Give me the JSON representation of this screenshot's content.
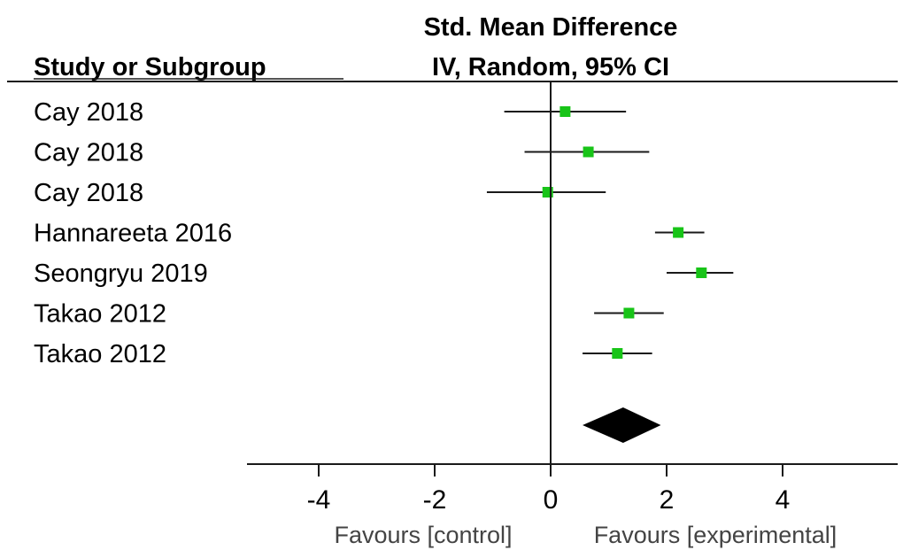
{
  "header": {
    "effect_title": "Std. Mean Difference",
    "column_label": "Study or Subgroup",
    "method": "IV, Random, 95% CI"
  },
  "footer": {
    "favours_left": "Favours [control]",
    "favours_right": "Favours [experimental]"
  },
  "colors": {
    "point": "#18c418",
    "line": "#1a1a1a",
    "diamond": "#000000"
  },
  "chart_data": {
    "type": "forest",
    "title": "Std. Mean Difference",
    "subtitle": "IV, Random, 95% CI",
    "xlim": [
      -5,
      6
    ],
    "x_ticks": [
      -4,
      -2,
      0,
      2,
      4
    ],
    "x_tick_labels": [
      "-4",
      "-2",
      "0",
      "2",
      "4"
    ],
    "studies": [
      {
        "label": "Cay 2018",
        "estimate": 0.25,
        "lower": -0.8,
        "upper": 1.3
      },
      {
        "label": "Cay 2018",
        "estimate": 0.65,
        "lower": -0.45,
        "upper": 1.7
      },
      {
        "label": "Cay 2018",
        "estimate": -0.05,
        "lower": -1.1,
        "upper": 0.95
      },
      {
        "label": "Hannareeta 2016",
        "estimate": 2.2,
        "lower": 1.8,
        "upper": 2.65
      },
      {
        "label": "Seongryu 2019",
        "estimate": 2.6,
        "lower": 2.0,
        "upper": 3.15
      },
      {
        "label": "Takao 2012",
        "estimate": 1.35,
        "lower": 0.75,
        "upper": 1.95
      },
      {
        "label": "Takao 2012",
        "estimate": 1.15,
        "lower": 0.55,
        "upper": 1.75
      }
    ],
    "pooled": {
      "estimate": 1.25,
      "lower": 0.55,
      "upper": 1.9
    }
  }
}
